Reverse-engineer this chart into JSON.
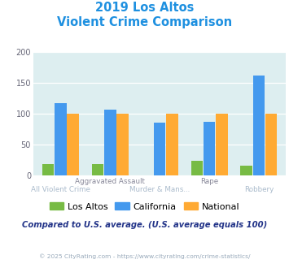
{
  "title_line1": "2019 Los Altos",
  "title_line2": "Violent Crime Comparison",
  "los_altos": [
    18,
    19,
    0,
    24,
    16
  ],
  "california": [
    117,
    107,
    86,
    87,
    162
  ],
  "national": [
    100,
    100,
    100,
    100,
    100
  ],
  "colors": {
    "los_altos": "#77bb44",
    "california": "#4499ee",
    "national": "#ffaa33"
  },
  "ylim": [
    0,
    200
  ],
  "yticks": [
    0,
    50,
    100,
    150,
    200
  ],
  "bg_color": "#ddeef0",
  "title_color": "#1e90e0",
  "top_xlabel_color": "#888899",
  "bot_xlabel_color": "#aabbcc",
  "footnote": "Compared to U.S. average. (U.S. average equals 100)",
  "credit": "© 2025 CityRating.com - https://www.cityrating.com/crime-statistics/",
  "footnote_color": "#223388",
  "credit_color": "#99aabb",
  "top_labels": [
    "",
    "Aggravated Assault",
    "",
    "Rape",
    ""
  ],
  "bottom_labels": [
    "All Violent Crime",
    "",
    "Murder & Mans...",
    "",
    "Robbery"
  ]
}
